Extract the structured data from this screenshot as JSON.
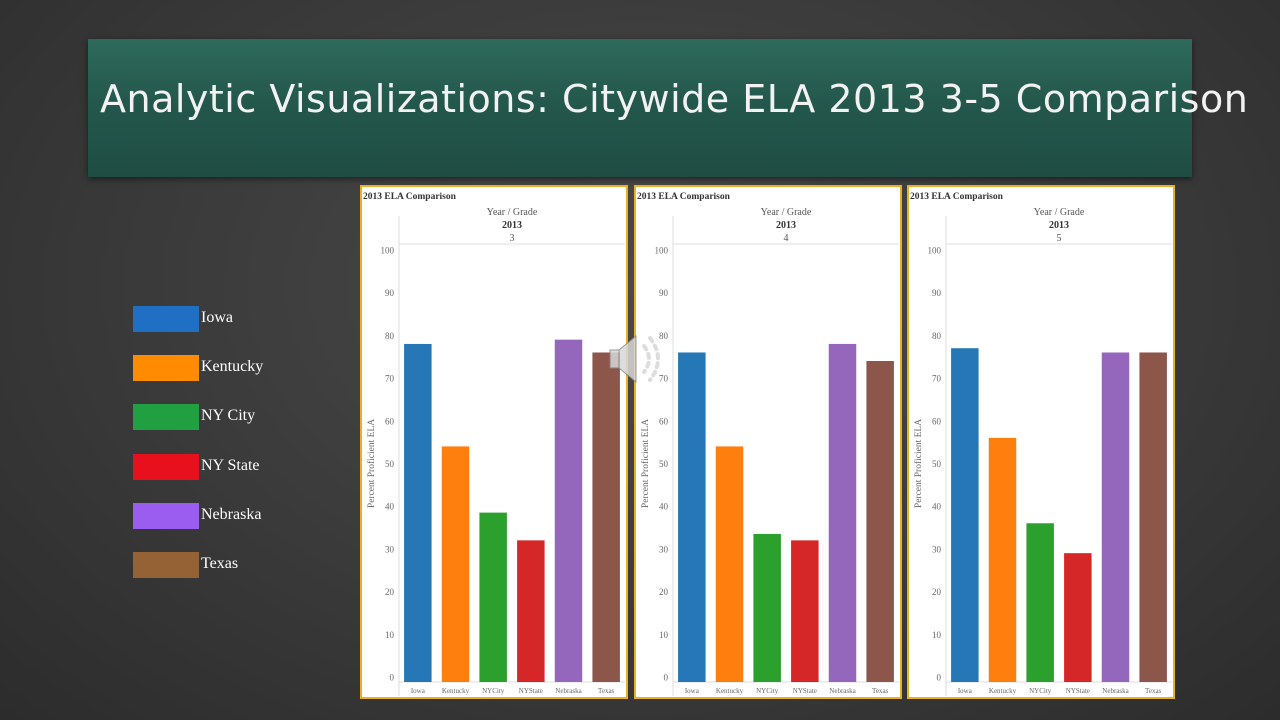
{
  "title": "Analytic Visualizations: Citywide ELA 2013 3-5 Comparison",
  "legend": [
    {
      "label": "Iowa",
      "color": "#1f6fc4"
    },
    {
      "label": "Kentucky",
      "color": "#ff8c00"
    },
    {
      "label": "NY City",
      "color": "#20a040"
    },
    {
      "label": "NY State",
      "color": "#e8101c"
    },
    {
      "label": "Nebraska",
      "color": "#9b5cf0"
    },
    {
      "label": "Texas",
      "color": "#946234"
    }
  ],
  "icons": {
    "audio": "speaker-icon"
  },
  "chart_data": [
    {
      "type": "bar",
      "title": "2013 ELA Comparison",
      "header_label": "Year  /  Grade",
      "year": "2013",
      "grade": "3",
      "ylabel": "Percent Proficient ELA",
      "ylim": [
        0,
        100
      ],
      "yticks": [
        0,
        10,
        20,
        30,
        40,
        50,
        60,
        70,
        80,
        90,
        100
      ],
      "categories": [
        "Iowa",
        "Kentucky",
        "NYCity",
        "NYState",
        "Nebraska",
        "Texas"
      ],
      "values": [
        78,
        54,
        38.5,
        32,
        79,
        76
      ],
      "colors": [
        "#2677b5",
        "#ff7f0e",
        "#2ca02c",
        "#d62728",
        "#9467bd",
        "#8c564b"
      ]
    },
    {
      "type": "bar",
      "title": "2013 ELA Comparison",
      "header_label": "Year  /  Grade",
      "year": "2013",
      "grade": "4",
      "ylabel": "Percent Proficient ELA",
      "ylim": [
        0,
        100
      ],
      "yticks": [
        0,
        10,
        20,
        30,
        40,
        50,
        60,
        70,
        80,
        90,
        100
      ],
      "categories": [
        "Iowa",
        "Kentucky",
        "NYCity",
        "NYState",
        "Nebraska",
        "Texas"
      ],
      "values": [
        76,
        54,
        33.5,
        32,
        78,
        74
      ],
      "colors": [
        "#2677b5",
        "#ff7f0e",
        "#2ca02c",
        "#d62728",
        "#9467bd",
        "#8c564b"
      ]
    },
    {
      "type": "bar",
      "title": "2013 ELA Comparison",
      "header_label": "Year  /  Grade",
      "year": "2013",
      "grade": "5",
      "ylabel": "Percent Proficient ELA",
      "ylim": [
        0,
        100
      ],
      "yticks": [
        0,
        10,
        20,
        30,
        40,
        50,
        60,
        70,
        80,
        90,
        100
      ],
      "categories": [
        "Iowa",
        "Kentucky",
        "NYCity",
        "NYState",
        "Nebraska",
        "Texas"
      ],
      "values": [
        77,
        56,
        36,
        29,
        76,
        76
      ],
      "colors": [
        "#2677b5",
        "#ff7f0e",
        "#2ca02c",
        "#d62728",
        "#9467bd",
        "#8c564b"
      ]
    }
  ]
}
